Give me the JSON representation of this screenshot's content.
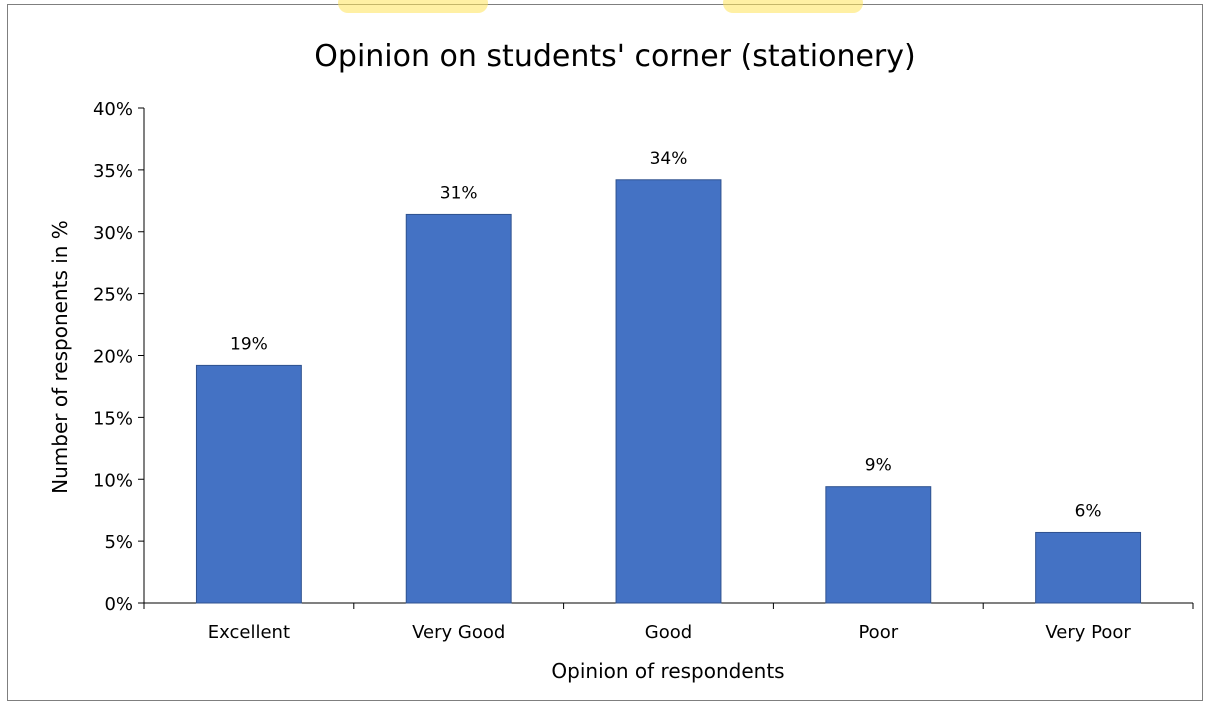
{
  "chart_data": {
    "type": "bar",
    "title": "Opinion on students' corner (stationery)",
    "xlabel": "Opinion of respondents",
    "ylabel": "Number of responents in %",
    "categories": [
      "Excellent",
      "Very Good",
      "Good",
      "Poor",
      "Very Poor"
    ],
    "values": [
      19.2,
      31.4,
      34.2,
      9.4,
      5.7
    ],
    "data_labels": [
      "19%",
      "31%",
      "34%",
      "9%",
      "6%"
    ],
    "ylim": [
      0,
      40
    ],
    "yticks": [
      0,
      5,
      10,
      15,
      20,
      25,
      30,
      35,
      40
    ],
    "ytick_labels": [
      "0%",
      "5%",
      "10%",
      "15%",
      "20%",
      "25%",
      "30%",
      "35%",
      "40%"
    ],
    "grid": false,
    "legend": "none",
    "colors": {
      "bar": "#4472C4",
      "bar_edge": "#2F528F",
      "axis": "#000000",
      "frame": "#7F7F7F",
      "watermark": "#FFE14D"
    }
  }
}
